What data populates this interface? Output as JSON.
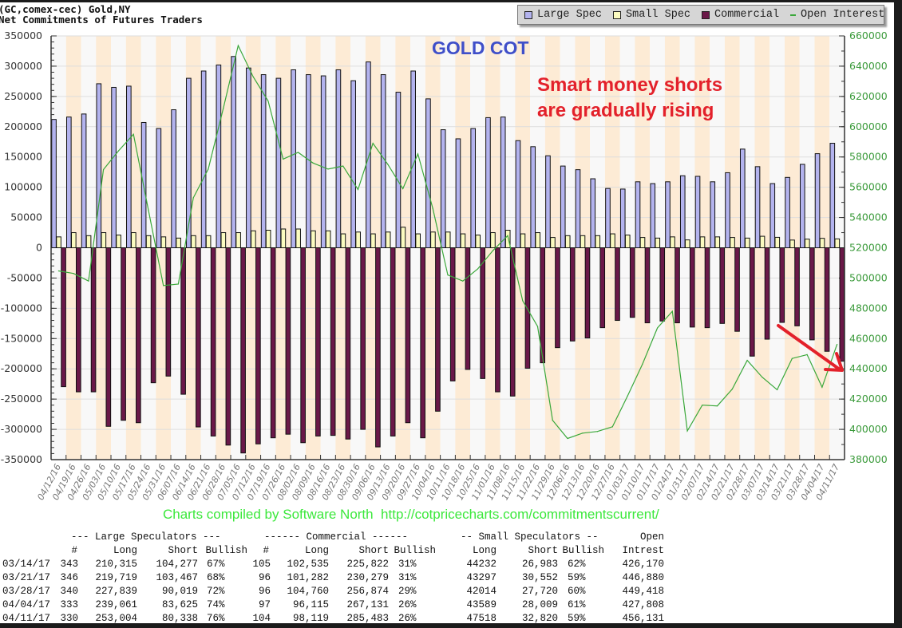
{
  "header": {
    "line1": "(GC,comex-cec) Gold,NY",
    "line2": "Net Commitments of Futures Traders"
  },
  "legend": {
    "items": [
      {
        "label": "Large Spec",
        "color": "#b3b3ee"
      },
      {
        "label": "Small Spec",
        "color": "#fbfbc0"
      },
      {
        "label": "Commercial",
        "color": "#6a1848"
      },
      {
        "label": "Open Interest",
        "color": "#3aa83a"
      }
    ]
  },
  "annotations": {
    "title": "GOLD COT",
    "note_line1": "Smart money shorts",
    "note_line2": "are gradually rising",
    "arrow_color": "#e3212b"
  },
  "credit": "Charts compiled by Software North  http://cotpricecharts.com/commitmentscurrent/",
  "chart_data": {
    "type": "bar",
    "title": "",
    "left_axis": {
      "range": [
        -350000,
        350000
      ],
      "ticks": [
        "350000",
        "300000",
        "250000",
        "200000",
        "150000",
        "100000",
        "50000",
        "0",
        "-50000",
        "-100000",
        "-150000",
        "-200000",
        "-250000",
        "-300000",
        "-350000"
      ]
    },
    "right_axis": {
      "range": [
        380000,
        660000
      ],
      "ticks": [
        "660000",
        "640000",
        "620000",
        "600000",
        "580000",
        "560000",
        "540000",
        "520000",
        "500000",
        "480000",
        "460000",
        "440000",
        "420000",
        "400000",
        "380000"
      ],
      "color": "#3a9a3a"
    },
    "grid": true,
    "legend_position": "top-right",
    "background_stripes": [
      "#f8f8f8",
      "#fdebd5"
    ],
    "categories": [
      "04/12/16",
      "04/19/16",
      "04/26/16",
      "05/03/16",
      "05/10/16",
      "05/17/16",
      "05/24/16",
      "05/31/16",
      "06/07/16",
      "06/14/16",
      "06/21/16",
      "06/28/16",
      "07/05/16",
      "07/12/16",
      "07/19/16",
      "07/26/16",
      "08/02/16",
      "08/09/16",
      "08/16/16",
      "08/23/16",
      "08/30/16",
      "09/06/16",
      "09/13/16",
      "09/20/16",
      "09/27/16",
      "10/04/16",
      "10/11/16",
      "10/18/16",
      "10/25/16",
      "11/01/16",
      "11/08/16",
      "11/15/16",
      "11/22/16",
      "11/29/16",
      "12/06/16",
      "12/13/16",
      "12/20/16",
      "12/27/16",
      "01/03/17",
      "01/10/17",
      "01/17/17",
      "01/24/17",
      "01/31/17",
      "02/07/17",
      "02/14/17",
      "02/21/17",
      "02/28/17",
      "03/07/17",
      "03/14/17",
      "03/21/17",
      "03/28/17",
      "04/04/17",
      "04/11/17"
    ],
    "series": [
      {
        "name": "Large Spec",
        "axis": "left",
        "kind": "bar",
        "values": [
          212000,
          216000,
          221000,
          271000,
          265000,
          267000,
          207000,
          197000,
          228000,
          280000,
          292000,
          302000,
          316000,
          297000,
          286000,
          280000,
          294000,
          286000,
          284000,
          294000,
          276000,
          307000,
          286000,
          257000,
          292000,
          246000,
          195000,
          180000,
          197000,
          215000,
          216000,
          177000,
          167000,
          152000,
          135000,
          129000,
          114000,
          98000,
          97000,
          109000,
          106000,
          109000,
          119000,
          118000,
          109000,
          124000,
          163000,
          134000,
          106038,
          116252,
          137820,
          155436,
          172666
        ]
      },
      {
        "name": "Small Spec",
        "axis": "left",
        "kind": "bar",
        "values": [
          18000,
          25000,
          20000,
          25000,
          21000,
          25000,
          20000,
          18000,
          16000,
          20000,
          20000,
          25000,
          25000,
          28000,
          29000,
          31000,
          31000,
          28000,
          28000,
          23000,
          26000,
          23000,
          26000,
          34000,
          23000,
          26000,
          26000,
          23000,
          21000,
          25000,
          29000,
          23000,
          25000,
          17000,
          20000,
          20000,
          20000,
          23000,
          21000,
          17000,
          16000,
          18000,
          13000,
          18000,
          18000,
          17000,
          16000,
          19000,
          17249,
          12745,
          14294,
          15580,
          14698
        ]
      },
      {
        "name": "Commercial",
        "axis": "left",
        "kind": "bar",
        "values": [
          -229500,
          -238000,
          -238000,
          -295000,
          -285000,
          -289000,
          -223000,
          -212000,
          -242000,
          -296000,
          -311000,
          -326000,
          -339000,
          -324000,
          -314000,
          -308000,
          -322000,
          -311000,
          -310000,
          -316000,
          -300000,
          -329000,
          -311000,
          -289000,
          -314000,
          -270000,
          -220000,
          -201000,
          -216000,
          -238000,
          -245000,
          -199000,
          -190000,
          -165000,
          -154000,
          -149000,
          -132000,
          -120000,
          -115000,
          -124000,
          -121000,
          -124000,
          -131000,
          -132000,
          -125000,
          -138000,
          -179000,
          -151000,
          -123287,
          -128997,
          -152114,
          -171016,
          -187364
        ]
      },
      {
        "name": "Open Interest",
        "axis": "right",
        "kind": "line",
        "values": [
          504700,
          503000,
          498000,
          571700,
          584000,
          595000,
          545000,
          495000,
          496000,
          553000,
          572000,
          612000,
          653600,
          633000,
          617000,
          578600,
          583000,
          576000,
          572000,
          574000,
          558500,
          589000,
          575000,
          559000,
          582000,
          546000,
          502000,
          498000,
          506000,
          518000,
          528000,
          485000,
          468000,
          406000,
          394000,
          397500,
          398600,
          401700,
          422000,
          443000,
          467000,
          478000,
          399000,
          416000,
          415500,
          426600,
          445600,
          434500,
          426170,
          446880,
          449418,
          427808,
          456131
        ]
      }
    ]
  },
  "table": {
    "group_headers": [
      "--- Large Speculators ---",
      "------ Commercial ------",
      "-- Small Speculators --",
      "Open"
    ],
    "columns": [
      "#",
      "Long",
      "Short",
      "Bullish",
      "#",
      "Long",
      "Short",
      "Bullish",
      "Long",
      "Short",
      "Bullish",
      "Intrest"
    ],
    "rows": [
      [
        "03/14/17",
        "343",
        "210,315",
        "104,277",
        "67%",
        "105",
        "102,535",
        "225,822",
        "31%",
        "44232",
        "26,983",
        "62%",
        "426,170"
      ],
      [
        "03/21/17",
        "346",
        "219,719",
        "103,467",
        "68%",
        "96",
        "101,282",
        "230,279",
        "31%",
        "43297",
        "30,552",
        "59%",
        "446,880"
      ],
      [
        "03/28/17",
        "340",
        "227,839",
        "90,019",
        "72%",
        "96",
        "104,760",
        "256,874",
        "29%",
        "42014",
        "27,720",
        "60%",
        "449,418"
      ],
      [
        "04/04/17",
        "333",
        "239,061",
        "83,625",
        "74%",
        "97",
        "96,115",
        "267,131",
        "26%",
        "43589",
        "28,009",
        "61%",
        "427,808"
      ],
      [
        "04/11/17",
        "330",
        "253,004",
        "80,338",
        "76%",
        "104",
        "98,119",
        "285,483",
        "26%",
        "47518",
        "32,820",
        "59%",
        "456,131"
      ]
    ]
  }
}
